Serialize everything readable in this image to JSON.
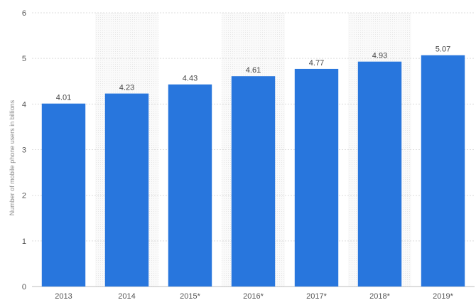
{
  "chart_data": {
    "type": "bar",
    "categories": [
      "2013",
      "2014",
      "2015*",
      "2016*",
      "2017*",
      "2018*",
      "2019*"
    ],
    "series": [
      {
        "values": [
          4.01,
          4.23,
          4.43,
          4.61,
          4.77,
          4.93,
          5.07
        ]
      }
    ],
    "value_labels": [
      "4.01",
      "4.23",
      "4.43",
      "4.61",
      "4.77",
      "4.93",
      "5.07"
    ],
    "xlabel": "",
    "ylabel": "Number of mobile phone users in billions",
    "ylim": [
      0,
      6
    ],
    "yticks": [
      "0",
      "1",
      "2",
      "3",
      "4",
      "5",
      "6"
    ],
    "grid": true,
    "colors": {
      "bar": "#2876dd",
      "grid": "#dcdcdc",
      "band": "#f5f5f5"
    }
  }
}
